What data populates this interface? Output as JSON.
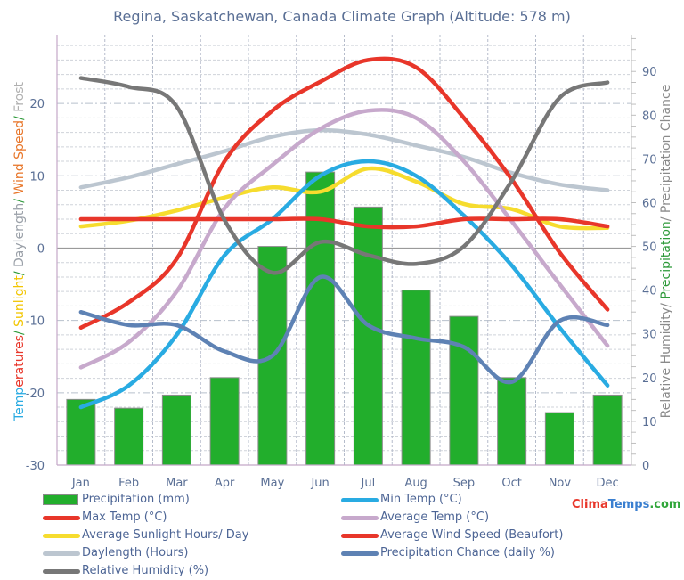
{
  "chart_data": {
    "type": "bar+line",
    "title": "Regina, Saskatchewan, Canada Climate Graph (Altitude: 578 m)",
    "categories": [
      "Jan",
      "Feb",
      "Mar",
      "Apr",
      "May",
      "Jun",
      "Jul",
      "Aug",
      "Sep",
      "Oct",
      "Nov",
      "Dec"
    ],
    "left_axis": {
      "label_parts": [
        {
          "text": "Temp",
          "color": "#29abe2"
        },
        {
          "text": "eratures",
          "color": "#e8362a"
        },
        {
          "text": "/ ",
          "color": "#2e9a3a"
        },
        {
          "text": "Sunlight",
          "color": "#f2c500"
        },
        {
          "text": "/ ",
          "color": "#2e9a3a"
        },
        {
          "text": "Daylength",
          "color": "#9aa0a8"
        },
        {
          "text": "/ ",
          "color": "#2e9a3a"
        },
        {
          "text": "Wind Speed",
          "color": "#e8762a"
        },
        {
          "text": "/ ",
          "color": "#2e9a3a"
        },
        {
          "text": "Frost",
          "color": "#b0b0b0"
        }
      ],
      "ticks": [
        "-30",
        "-20",
        "-10",
        "0",
        "10",
        "20"
      ],
      "tick_values": [
        -30,
        -20,
        -10,
        0,
        10,
        20
      ],
      "range": [
        -30,
        29.5
      ]
    },
    "right_axis": {
      "label_parts": [
        {
          "text": "Relative Humidity",
          "color": "#8a8a8a"
        },
        {
          "text": "/ ",
          "color": "#8a8a8a"
        },
        {
          "text": "Precipitation",
          "color": "#2e9a3a"
        },
        {
          "text": "/ ",
          "color": "#8a8a8a"
        },
        {
          "text": "Precipitation Chance",
          "color": "#8a8a8a"
        }
      ],
      "ticks": [
        "0",
        "10",
        "20",
        "30",
        "40",
        "50",
        "60",
        "70",
        "80",
        "90"
      ],
      "tick_values": [
        0,
        10,
        20,
        30,
        40,
        50,
        60,
        70,
        80,
        90
      ],
      "range": [
        0,
        98.4
      ]
    },
    "grid": true,
    "legend_position": "bottom",
    "series": [
      {
        "name": "Precipitation (mm)",
        "kind": "bar",
        "axis": "right",
        "color": "#22ae2c",
        "values": [
          15,
          13,
          16,
          20,
          50,
          67,
          59,
          40,
          34,
          20,
          12,
          16
        ]
      },
      {
        "name": "Min Temp (°C)",
        "kind": "line",
        "axis": "left",
        "color": "#29abe2",
        "values": [
          -22,
          -19,
          -12,
          -1,
          4,
          10,
          12,
          10,
          4.5,
          -2.4,
          -11,
          -19
        ]
      },
      {
        "name": "Max Temp (°C)",
        "kind": "line",
        "axis": "left",
        "color": "#e8362a",
        "values": [
          -11,
          -7.5,
          -1.5,
          12,
          19,
          23,
          26,
          25,
          18,
          9.5,
          -0.6,
          -8.5
        ]
      },
      {
        "name": "Average Temp (°C)",
        "kind": "line",
        "axis": "left",
        "color": "#c7a9cc",
        "values": [
          -16.5,
          -13,
          -6,
          5.5,
          11.5,
          16.5,
          19,
          18,
          12,
          3.7,
          -5,
          -13.5
        ]
      },
      {
        "name": "Average Sunlight Hours/ Day",
        "kind": "line",
        "axis": "left",
        "color": "#f6dc2e",
        "values": [
          3,
          3.8,
          5.2,
          7,
          8.4,
          7.8,
          11,
          9.2,
          6.1,
          5.4,
          3,
          2.8
        ]
      },
      {
        "name": "Average Wind Speed (Beaufort)",
        "kind": "line",
        "axis": "left",
        "color": "#e8362a",
        "values": [
          4,
          4,
          4,
          4,
          4,
          4,
          3,
          3,
          4,
          4,
          4,
          3
        ]
      },
      {
        "name": "Daylength (Hours)",
        "kind": "line",
        "axis": "left",
        "color": "#bcc6d0",
        "values": [
          8.4,
          9.8,
          11.6,
          13.4,
          15.4,
          16.3,
          15.7,
          14.2,
          12.6,
          10.4,
          8.8,
          8
        ]
      },
      {
        "name": "Precipitation Chance (daily %)",
        "kind": "line",
        "axis": "right",
        "color": "#5e82b4",
        "values": [
          35,
          32,
          32,
          26,
          25,
          43,
          32,
          29,
          27,
          19,
          33,
          32
        ]
      },
      {
        "name": "Relative Humidity (%)",
        "kind": "line",
        "axis": "right",
        "color": "#777777",
        "values": [
          88.5,
          86.5,
          82,
          56,
          44,
          51,
          48,
          46,
          50,
          65,
          84,
          87.5
        ]
      }
    ]
  },
  "legend": {
    "items": [
      {
        "label": "Precipitation (mm)",
        "color": "#22ae2c",
        "kind": "box"
      },
      {
        "label": "Min Temp (°C)",
        "color": "#29abe2",
        "kind": "line"
      },
      {
        "label": "Max Temp (°C)",
        "color": "#e8362a",
        "kind": "line"
      },
      {
        "label": "Average Temp (°C)",
        "color": "#c7a9cc",
        "kind": "line"
      },
      {
        "label": "Average Sunlight Hours/ Day",
        "color": "#f6dc2e",
        "kind": "line"
      },
      {
        "label": "Average Wind Speed (Beaufort)",
        "color": "#e8362a",
        "kind": "line"
      },
      {
        "label": "Daylength (Hours)",
        "color": "#bcc6d0",
        "kind": "line"
      },
      {
        "label": "Precipitation Chance (daily %)",
        "color": "#5e82b4",
        "kind": "line"
      },
      {
        "label": "Relative Humidity (%)",
        "color": "#777777",
        "kind": "line"
      }
    ]
  },
  "brand": {
    "part1": "Clima",
    "part2": "Temps",
    "part3": ".com"
  }
}
